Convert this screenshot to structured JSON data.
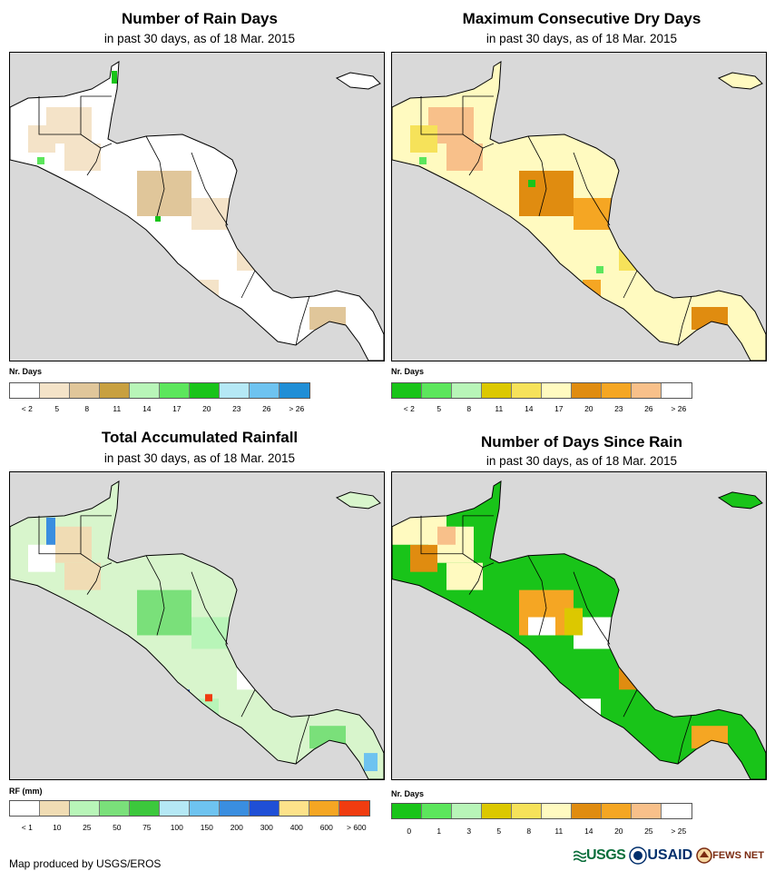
{
  "panels": [
    {
      "id": "rain-days",
      "title": "Number of Rain Days",
      "subtitle": "in past 30 days, as of 18 Mar. 2015",
      "legend_title": "Nr. Days",
      "legend_colors": [
        "#ffffff",
        "#f4e3c8",
        "#e0c69a",
        "#c8a040",
        "#b8f5b8",
        "#5ce65c",
        "#19c419",
        "#b5e8f5",
        "#6ec3f0",
        "#1f8ed6"
      ],
      "legend_ticks": [
        "< 2",
        "5",
        "8",
        "11",
        "14",
        "17",
        "20",
        "23",
        "26",
        "> 26"
      ],
      "land_color": "#ffffff",
      "patch_colors": [
        "#f4e3c8",
        "#e0c69a",
        "#f4e3c8",
        "#f4e3c8"
      ]
    },
    {
      "id": "dry-days",
      "title": "Maximum Consecutive Dry Days",
      "subtitle": "in past 30 days, as of 18 Mar. 2015",
      "legend_title": "Nr. Days",
      "legend_colors": [
        "#19c419",
        "#5ce65c",
        "#b8f5b8",
        "#dcc800",
        "#f6e25a",
        "#fffac0",
        "#e08c10",
        "#f5a623",
        "#f8c08a",
        "#ffffff"
      ],
      "legend_ticks": [
        "< 2",
        "5",
        "8",
        "11",
        "14",
        "17",
        "20",
        "23",
        "26",
        "> 26"
      ],
      "land_color": "#fffac0",
      "patch_colors": [
        "#f8c08a",
        "#e08c10",
        "#f6e25a",
        "#f5a623"
      ]
    },
    {
      "id": "total-rainfall",
      "title": "Total Accumulated Rainfall",
      "subtitle": "in past 30 days, as of 18 Mar. 2015",
      "legend_title": "RF (mm)",
      "legend_colors": [
        "#ffffff",
        "#f0dcb4",
        "#b8f5b8",
        "#7ae07a",
        "#3cc83c",
        "#b5e8f5",
        "#6ec3f0",
        "#3a8ee0",
        "#1f4fd6",
        "#fde28a",
        "#f5a623",
        "#f03c10"
      ],
      "legend_ticks": [
        "< 1",
        "10",
        "25",
        "50",
        "75",
        "100",
        "150",
        "200",
        "300",
        "400",
        "600",
        "> 600"
      ],
      "land_color": "#d8f5cc",
      "patch_colors": [
        "#f0dcb4",
        "#7ae07a",
        "#ffffff",
        "#b8f5b8"
      ]
    },
    {
      "id": "days-since-rain",
      "title": "Number of Days Since Rain",
      "subtitle": "in past 30 days, as of 18 Mar. 2015",
      "legend_title": "Nr. Days",
      "legend_colors": [
        "#19c419",
        "#5ce65c",
        "#b8f5b8",
        "#dcc800",
        "#f6e25a",
        "#fffac0",
        "#e08c10",
        "#f5a623",
        "#f8c08a",
        "#ffffff"
      ],
      "legend_ticks": [
        "0",
        "1",
        "3",
        "5",
        "8",
        "11",
        "14",
        "20",
        "25",
        "> 25"
      ],
      "land_color": "#19c419",
      "patch_colors": [
        "#fffac0",
        "#f5a623",
        "#e08c10",
        "#ffffff"
      ]
    }
  ],
  "footer": {
    "credit": "Map produced by USGS/EROS",
    "logo_usgs": "USGS",
    "logo_usaid": "USAID",
    "logo_fews": "FEWS NET"
  }
}
